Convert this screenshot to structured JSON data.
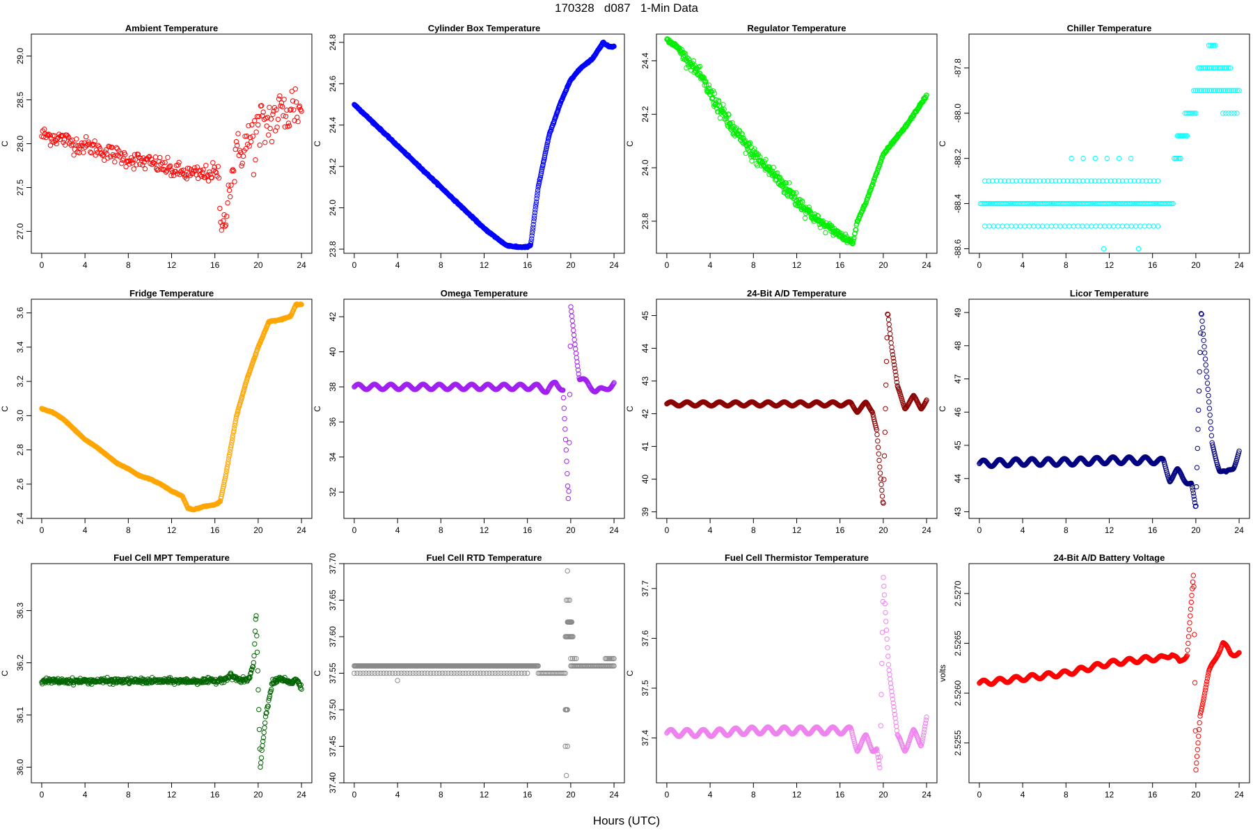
{
  "page": {
    "title": "170328   d087   1-Min Data",
    "xlabel": "Hours (UTC)"
  },
  "chart_data": [
    {
      "type": "scatter",
      "title": "Ambient Temperature",
      "ylabel": "C",
      "color": "#ff0000",
      "xlim": [
        0,
        24
      ],
      "ylim": [
        26.75,
        29.25
      ],
      "xticks": [
        0,
        4,
        8,
        12,
        16,
        20,
        24
      ],
      "yticks": [
        27.0,
        27.5,
        28.0,
        28.5,
        29.0
      ],
      "ytick_labels": [
        "27.0",
        "27.5",
        "28.0",
        "28.5",
        "29.0"
      ],
      "key_x": [
        0,
        1,
        2,
        3,
        4,
        5,
        6,
        7,
        8,
        9,
        10,
        11,
        12,
        13,
        14,
        15,
        16,
        16.3,
        16.7,
        17,
        17.5,
        18,
        18.5,
        19,
        19.5,
        20,
        20.5,
        21,
        21.5,
        22,
        22.5,
        23,
        23.5,
        24
      ],
      "key_y": [
        28.1,
        28.08,
        28.05,
        28.0,
        27.98,
        27.95,
        27.9,
        27.87,
        27.83,
        27.8,
        27.78,
        27.75,
        27.7,
        27.67,
        27.65,
        27.65,
        27.68,
        27.6,
        26.95,
        27.3,
        27.6,
        27.85,
        27.95,
        28.0,
        28.05,
        28.1,
        28.2,
        28.25,
        28.3,
        28.35,
        28.35,
        28.4,
        28.45,
        28.35
      ],
      "noise": [
        0.1,
        0.1,
        0.1,
        0.1,
        0.1,
        0.1,
        0.1,
        0.1,
        0.1,
        0.1,
        0.1,
        0.1,
        0.1,
        0.1,
        0.1,
        0.1,
        0.1,
        0.2,
        0.2,
        0.25,
        0.25,
        0.25,
        0.25,
        0.3,
        0.35,
        0.4,
        0.35,
        0.3,
        0.3,
        0.3,
        0.3,
        0.35,
        0.3,
        0.2
      ],
      "points": 300,
      "style": "noisy"
    },
    {
      "type": "scatter",
      "title": "Cylinder Box Temperature",
      "ylabel": "C",
      "color": "#0000ff",
      "xlim": [
        0,
        24
      ],
      "ylim": [
        23.78,
        24.84
      ],
      "xticks": [
        0,
        4,
        8,
        12,
        16,
        20,
        24
      ],
      "yticks": [
        23.8,
        24.0,
        24.2,
        24.4,
        24.6,
        24.8
      ],
      "ytick_labels": [
        "23.8",
        "24.0",
        "24.2",
        "24.4",
        "24.6",
        "24.8"
      ],
      "key_x": [
        0,
        2,
        4,
        6,
        8,
        10,
        12,
        14,
        15,
        16,
        16.3,
        17,
        18,
        19,
        20,
        21,
        22,
        23,
        23.5,
        24
      ],
      "key_y": [
        24.5,
        24.4,
        24.3,
        24.2,
        24.1,
        24.0,
        23.9,
        23.82,
        23.81,
        23.81,
        23.82,
        24.1,
        24.35,
        24.5,
        24.62,
        24.68,
        24.72,
        24.8,
        24.78,
        24.78
      ],
      "noise": [
        0.005
      ],
      "points": 700,
      "style": "line"
    },
    {
      "type": "scatter",
      "title": "Regulator Temperature",
      "ylabel": "C",
      "color": "#00ee00",
      "xlim": [
        0,
        24
      ],
      "ylim": [
        23.68,
        24.5
      ],
      "xticks": [
        0,
        4,
        8,
        12,
        16,
        20,
        24
      ],
      "yticks": [
        23.8,
        24.0,
        24.2,
        24.4
      ],
      "ytick_labels": [
        "23.8",
        "24.0",
        "24.2",
        "24.4"
      ],
      "key_x": [
        0,
        1,
        2,
        3,
        4,
        6,
        8,
        10,
        12,
        14,
        16,
        16.8,
        17.2,
        17.6,
        18.5,
        20,
        22,
        24
      ],
      "key_y": [
        24.48,
        24.45,
        24.4,
        24.35,
        24.28,
        24.15,
        24.05,
        23.97,
        23.88,
        23.8,
        23.75,
        23.73,
        23.72,
        23.8,
        23.88,
        24.05,
        24.15,
        24.27
      ],
      "noise": [
        0.005,
        0.01,
        0.02,
        0.02,
        0.03,
        0.03,
        0.03,
        0.03,
        0.03,
        0.02,
        0.015,
        0.01,
        0.005,
        0.005,
        0.005,
        0.005,
        0.005,
        0.005
      ],
      "points": 600,
      "style": "noisy"
    },
    {
      "type": "scatter",
      "title": "Chiller Temperature",
      "ylabel": "C",
      "color": "#00ffff",
      "xlim": [
        0,
        24
      ],
      "ylim": [
        -88.62,
        -87.65
      ],
      "xticks": [
        0,
        4,
        8,
        12,
        16,
        20,
        24
      ],
      "yticks": [
        -88.6,
        -88.4,
        -88.2,
        -88.0,
        -87.8
      ],
      "ytick_labels": [
        "-88.6",
        "-88.4",
        "-88.2",
        "-88.0",
        "-87.8"
      ],
      "levels": [
        {
          "y": -88.4,
          "x": [
            0.1,
            17.9
          ],
          "n": 130
        },
        {
          "y": -88.5,
          "x": [
            0.5,
            16.5
          ],
          "n": 40
        },
        {
          "y": -88.3,
          "x": [
            0.5,
            16.5
          ],
          "n": 45
        },
        {
          "y": -88.2,
          "x": [
            8.5,
            14
          ],
          "n": 6
        },
        {
          "y": -88.6,
          "x": [
            11.5,
            14.7
          ],
          "n": 2
        },
        {
          "y": -88.2,
          "x": [
            18,
            18.6
          ],
          "n": 6
        },
        {
          "y": -88.1,
          "x": [
            18.3,
            19.2
          ],
          "n": 8
        },
        {
          "y": -88.0,
          "x": [
            19.0,
            20.0
          ],
          "n": 8
        },
        {
          "y": -87.9,
          "x": [
            19.8,
            24
          ],
          "n": 24
        },
        {
          "y": -87.8,
          "x": [
            20.2,
            23.2
          ],
          "n": 18
        },
        {
          "y": -87.7,
          "x": [
            21.2,
            21.8
          ],
          "n": 5
        },
        {
          "y": -88.0,
          "x": [
            22.5,
            23.8
          ],
          "n": 6
        }
      ],
      "style": "levels"
    },
    {
      "type": "scatter",
      "title": "Fridge Temperature",
      "ylabel": "C",
      "color": "#ffa500",
      "xlim": [
        0,
        24
      ],
      "ylim": [
        2.4,
        3.68
      ],
      "xticks": [
        0,
        4,
        8,
        12,
        16,
        20,
        24
      ],
      "yticks": [
        2.4,
        2.6,
        2.8,
        3.0,
        3.2,
        3.4,
        3.6
      ],
      "ytick_labels": [
        "2.4",
        "2.6",
        "2.8",
        "3.0",
        "3.2",
        "3.4",
        "3.6"
      ],
      "key_x": [
        0,
        1,
        2,
        3,
        4,
        5,
        6,
        7,
        8,
        9,
        10,
        11,
        12,
        13,
        13.5,
        14,
        15,
        16,
        16.5,
        17,
        18,
        19,
        20,
        21,
        22,
        23,
        23.5,
        24
      ],
      "key_y": [
        3.04,
        3.02,
        2.98,
        2.92,
        2.86,
        2.82,
        2.77,
        2.72,
        2.69,
        2.65,
        2.63,
        2.6,
        2.56,
        2.53,
        2.46,
        2.45,
        2.47,
        2.48,
        2.5,
        2.65,
        3.0,
        3.22,
        3.4,
        3.55,
        3.56,
        3.58,
        3.65,
        3.65
      ],
      "noise": [
        0.004
      ],
      "points": 600,
      "style": "line"
    },
    {
      "type": "scatter",
      "title": "Omega Temperature",
      "ylabel": "C",
      "color": "#a020f0",
      "xlim": [
        0,
        24
      ],
      "ylim": [
        30.5,
        43
      ],
      "xticks": [
        0,
        4,
        8,
        12,
        16,
        20,
        24
      ],
      "yticks": [
        32,
        34,
        36,
        38,
        40,
        42
      ],
      "ytick_labels": [
        "32",
        "34",
        "36",
        "38",
        "40",
        "42"
      ],
      "key_x": [
        0,
        17,
        17.8,
        18.6,
        19.3,
        19.6,
        19.8,
        20.0,
        20.3,
        20.8,
        21.5,
        22.3,
        23,
        24
      ],
      "key_y": [
        38.0,
        38.0,
        37.8,
        38.2,
        37.9,
        34,
        31,
        42.5,
        41,
        38.5,
        38.2,
        37.8,
        37.8,
        38.2
      ],
      "wobble": 0.15,
      "points": 500,
      "style": "wave"
    },
    {
      "type": "scatter",
      "title": "24-Bit A/D Temperature",
      "ylabel": "C",
      "color": "#8b0000",
      "xlim": [
        0,
        24
      ],
      "ylim": [
        38.8,
        45.5
      ],
      "xticks": [
        0,
        4,
        8,
        12,
        16,
        20,
        24
      ],
      "yticks": [
        39,
        40,
        41,
        42,
        43,
        44,
        45
      ],
      "ytick_labels": [
        "39",
        "40",
        "41",
        "42",
        "43",
        "44",
        "45"
      ],
      "key_x": [
        0,
        17,
        17.6,
        18.4,
        19.0,
        19.4,
        19.7,
        20.0,
        20.4,
        20.8,
        21.3,
        22,
        22.8,
        23.5,
        24
      ],
      "key_y": [
        42.3,
        42.3,
        42.1,
        42.3,
        42.1,
        41.5,
        40.2,
        39.1,
        45.2,
        44.0,
        42.8,
        42.2,
        42.5,
        42.2,
        42.4
      ],
      "wobble": 0.06,
      "points": 500,
      "style": "wave"
    },
    {
      "type": "scatter",
      "title": "Licor Temperature",
      "ylabel": "C",
      "color": "#000080",
      "xlim": [
        0,
        24
      ],
      "ylim": [
        42.8,
        49.4
      ],
      "xticks": [
        0,
        4,
        8,
        12,
        16,
        20,
        24
      ],
      "yticks": [
        43,
        44,
        45,
        46,
        47,
        48,
        49
      ],
      "ytick_labels": [
        "43",
        "44",
        "45",
        "46",
        "47",
        "48",
        "49"
      ],
      "key_x": [
        0,
        4,
        8,
        12,
        16,
        17,
        17.6,
        18.3,
        19.0,
        19.6,
        20.0,
        20.5,
        21.5,
        22.2,
        22.8,
        23.5,
        24
      ],
      "key_y": [
        44.45,
        44.5,
        44.5,
        44.55,
        44.55,
        44.5,
        44.0,
        44.2,
        44.0,
        43.8,
        43.0,
        49.2,
        45.0,
        44.3,
        44.1,
        44.4,
        44.8
      ],
      "wobble": 0.1,
      "points": 500,
      "style": "wave"
    },
    {
      "type": "scatter",
      "title": "Fuel Cell MPT Temperature",
      "ylabel": "C",
      "color": "#006400",
      "xlim": [
        0,
        24
      ],
      "ylim": [
        35.97,
        36.39
      ],
      "xticks": [
        0,
        4,
        8,
        12,
        16,
        20,
        24
      ],
      "yticks": [
        36.0,
        36.1,
        36.2,
        36.3
      ],
      "ytick_labels": [
        "36.0",
        "36.1",
        "36.2",
        "36.3"
      ],
      "key_x": [
        0,
        4,
        8,
        12,
        16,
        17,
        17.5,
        18.5,
        19.2,
        19.6,
        19.8,
        20.2,
        20.7,
        21.3,
        22,
        23,
        23.5,
        24
      ],
      "key_y": [
        36.165,
        36.165,
        36.165,
        36.165,
        36.165,
        36.17,
        36.175,
        36.165,
        36.17,
        36.2,
        36.3,
        36.0,
        36.1,
        36.16,
        36.17,
        36.16,
        36.17,
        36.15
      ],
      "noise": [
        0.005
      ],
      "points": 500,
      "style": "noisy"
    },
    {
      "type": "scatter",
      "title": "Fuel Cell RTD Temperature",
      "ylabel": "C",
      "color": "#888888",
      "xlim": [
        0,
        24
      ],
      "ylim": [
        37.4,
        37.7
      ],
      "xticks": [
        0,
        4,
        8,
        12,
        16,
        20,
        24
      ],
      "yticks": [
        37.4,
        37.45,
        37.5,
        37.55,
        37.6,
        37.65,
        37.7
      ],
      "ytick_labels": [
        "37.40",
        "37.45",
        "37.50",
        "37.55",
        "37.60",
        "37.65",
        "37.70"
      ],
      "levels": [
        {
          "y": 37.56,
          "x": [
            0,
            17
          ],
          "n": 240
        },
        {
          "y": 37.55,
          "x": [
            0,
            16
          ],
          "n": 60
        },
        {
          "y": 37.56,
          "x": [
            20,
            24
          ],
          "n": 40
        },
        {
          "y": 37.55,
          "x": [
            17,
            19.5
          ],
          "n": 20
        },
        {
          "y": 37.54,
          "x": [
            4,
            4.2
          ],
          "n": 1
        },
        {
          "y": 37.57,
          "x": [
            23.2,
            24
          ],
          "n": 8
        },
        {
          "y": 37.57,
          "x": [
            20,
            20.5
          ],
          "n": 4
        },
        {
          "y": 37.6,
          "x": [
            19.5,
            20.2
          ],
          "n": 10
        },
        {
          "y": 37.62,
          "x": [
            19.7,
            20.1
          ],
          "n": 8
        },
        {
          "y": 37.65,
          "x": [
            19.6,
            19.9
          ],
          "n": 3
        },
        {
          "y": 37.5,
          "x": [
            19.5,
            19.7
          ],
          "n": 4
        },
        {
          "y": 37.45,
          "x": [
            19.5,
            19.7
          ],
          "n": 2
        },
        {
          "y": 37.69,
          "x": [
            19.7,
            19.8
          ],
          "n": 1
        },
        {
          "y": 37.41,
          "x": [
            19.6,
            19.7
          ],
          "n": 1
        }
      ],
      "style": "levels"
    },
    {
      "type": "scatter",
      "title": "Fuel Cell Thermistor Temperature",
      "ylabel": "C",
      "color": "#ee82ee",
      "xlim": [
        0,
        24
      ],
      "ylim": [
        37.31,
        37.75
      ],
      "xticks": [
        0,
        4,
        8,
        12,
        16,
        20,
        24
      ],
      "yticks": [
        37.4,
        37.5,
        37.6,
        37.7
      ],
      "ytick_labels": [
        "37.4",
        "37.5",
        "37.6",
        "37.7"
      ],
      "key_x": [
        0,
        4,
        8,
        12,
        16,
        17,
        17.6,
        18.4,
        19.0,
        19.4,
        19.7,
        20.0,
        20.5,
        21.3,
        22,
        22.8,
        23.5,
        24
      ],
      "key_y": [
        37.41,
        37.41,
        37.415,
        37.415,
        37.415,
        37.415,
        37.38,
        37.4,
        37.38,
        37.38,
        37.33,
        37.72,
        37.55,
        37.4,
        37.38,
        37.41,
        37.39,
        37.44
      ],
      "wobble": 0.007,
      "points": 500,
      "style": "wave"
    },
    {
      "type": "scatter",
      "title": "24-Bit A/D Battery Voltage",
      "ylabel": "volts",
      "color": "#ff0000",
      "xlim": [
        0,
        24
      ],
      "ylim": [
        2.5251,
        2.5273
      ],
      "xticks": [
        0,
        4,
        8,
        12,
        16,
        20,
        24
      ],
      "yticks": [
        2.5255,
        2.526,
        2.5265,
        2.527
      ],
      "ytick_labels": [
        "2.5255",
        "2.5260",
        "2.5265",
        "2.5270"
      ],
      "key_x": [
        0,
        4,
        8,
        12,
        16,
        17,
        17.8,
        18.5,
        19.2,
        19.8,
        20.0,
        20.4,
        21.2,
        22.0,
        22.5,
        23.2,
        24
      ],
      "key_y": [
        2.5261,
        2.52615,
        2.5262,
        2.5263,
        2.52635,
        2.52635,
        2.5264,
        2.5263,
        2.5264,
        2.5272,
        2.5252,
        2.5258,
        2.5262,
        2.5264,
        2.5265,
        2.5264,
        2.5264
      ],
      "wobble": 2.5e-05,
      "points": 500,
      "style": "wave"
    }
  ]
}
